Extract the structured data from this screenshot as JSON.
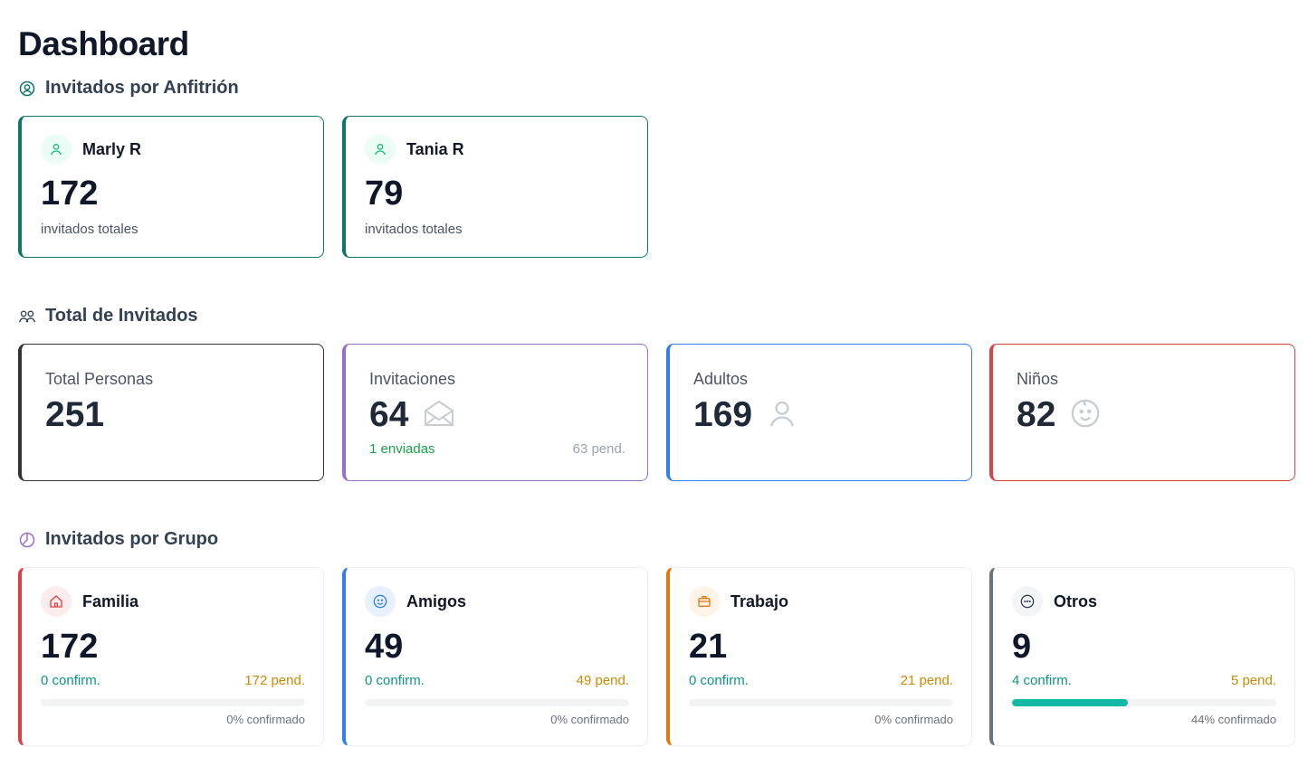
{
  "page": {
    "title": "Dashboard"
  },
  "sections": {
    "hosts_title": "Invitados por Anfitrión",
    "totals_title": "Total de Invitados",
    "groups_title": "Invitados por Grupo"
  },
  "hosts": [
    {
      "name": "Marly R",
      "count": "172",
      "sub": "invitados totales",
      "icon": "user-icon"
    },
    {
      "name": "Tania R",
      "count": "79",
      "sub": "invitados totales",
      "icon": "user-icon"
    }
  ],
  "totals": {
    "personas": {
      "label": "Total Personas",
      "value": "251",
      "color": "#333333"
    },
    "invitaciones": {
      "label": "Invitaciones",
      "value": "64",
      "sent": "1 enviadas",
      "pending": "63 pend.",
      "icon": "envelope-open-icon",
      "color": "#9b6fc7"
    },
    "adultos": {
      "label": "Adultos",
      "value": "169",
      "icon": "user-icon",
      "color": "#2f80ed"
    },
    "ninos": {
      "label": "Niños",
      "value": "82",
      "icon": "baby-face-icon",
      "color": "#d9444a"
    }
  },
  "groups": [
    {
      "name": "Familia",
      "count": "172",
      "confirmed": "0 confirm.",
      "pending": "172 pend.",
      "progress": 0,
      "progress_label": "0% confirmado",
      "icon": "home-icon",
      "color": "#dc3f45",
      "icon_bg": "#fdeced"
    },
    {
      "name": "Amigos",
      "count": "49",
      "confirmed": "0 confirm.",
      "pending": "49 pend.",
      "progress": 0,
      "progress_label": "0% confirmado",
      "icon": "smile-icon",
      "color": "#2f80ed",
      "icon_bg": "#e8f0fd"
    },
    {
      "name": "Trabajo",
      "count": "21",
      "confirmed": "0 confirm.",
      "pending": "21 pend.",
      "progress": 0,
      "progress_label": "0% confirmado",
      "icon": "briefcase-icon",
      "color": "#e07a10",
      "icon_bg": "#fdf3e6"
    },
    {
      "name": "Otros",
      "count": "9",
      "confirmed": "4 confirm.",
      "pending": "5 pend.",
      "progress": 44,
      "progress_label": "44% confirmado",
      "icon": "more-dots-icon",
      "color": "#6b7280",
      "icon_bg": "#f3f4f6"
    }
  ],
  "colors": {
    "accent_teal": "#0f766e",
    "confirm": "#0d9488",
    "pending": "#ca8a04",
    "sent": "#16a34a"
  }
}
